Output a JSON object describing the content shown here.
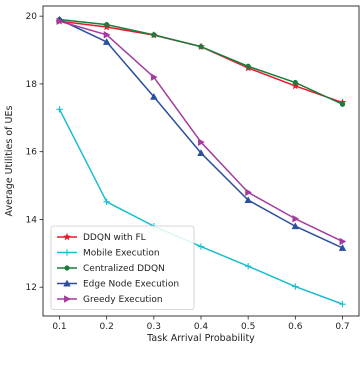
{
  "chart_data": {
    "type": "line",
    "title": "",
    "xlabel": "Task Arrival Probability",
    "ylabel": "Average Utilities of UEs",
    "x": [
      0.1,
      0.2,
      0.3,
      0.4,
      0.5,
      0.6,
      0.7
    ],
    "x_ticks": [
      "0.1",
      "0.2",
      "0.3",
      "0.4",
      "0.5",
      "0.6",
      "0.7"
    ],
    "y_ticks": [
      "12",
      "14",
      "16",
      "18",
      "20"
    ],
    "xlim": [
      0.065,
      0.735
    ],
    "ylim": [
      11.15,
      20.3
    ],
    "grid": false,
    "legend_position": "lower-left",
    "series": [
      {
        "name": "DDQN with FL",
        "color": "#e8192c",
        "marker": "star",
        "values": [
          19.85,
          19.68,
          19.44,
          19.1,
          18.47,
          17.94,
          17.45
        ]
      },
      {
        "name": "Mobile Execution",
        "color": "#17becf",
        "marker": "plus",
        "values": [
          17.25,
          14.52,
          13.8,
          13.2,
          12.62,
          12.02,
          11.5
        ]
      },
      {
        "name": "Centralized DDQN",
        "color": "#1a7d3c",
        "marker": "circle",
        "values": [
          19.9,
          19.75,
          19.45,
          19.1,
          18.52,
          18.04,
          17.4
        ]
      },
      {
        "name": "Edge Node Execution",
        "color": "#2b4f9e",
        "marker": "triangle",
        "values": [
          19.9,
          19.24,
          17.62,
          15.96,
          14.57,
          13.8,
          13.16
        ]
      },
      {
        "name": "Greedy Execution",
        "color": "#a43c9c",
        "marker": "triangle-right",
        "values": [
          19.85,
          19.45,
          18.2,
          16.28,
          14.8,
          14.02,
          13.35
        ]
      }
    ]
  }
}
